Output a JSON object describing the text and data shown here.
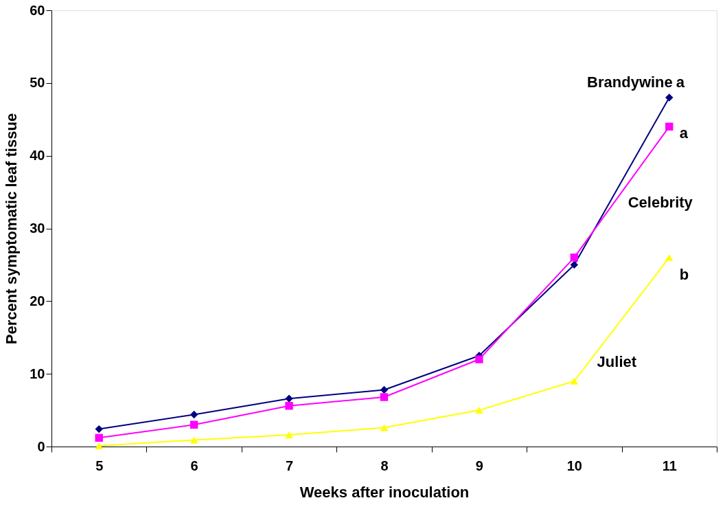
{
  "chart_data": {
    "type": "line",
    "xlabel": "Weeks after inoculation",
    "ylabel": "Percent symptomatic leaf tissue",
    "categories": [
      "5",
      "6",
      "7",
      "8",
      "9",
      "10",
      "11"
    ],
    "series": [
      {
        "name": "Brandywine",
        "color": "#000080",
        "marker": "diamond",
        "values": [
          2.4,
          4.4,
          6.6,
          7.8,
          12.5,
          25,
          48
        ]
      },
      {
        "name": "Celebrity",
        "color": "#ff00ff",
        "marker": "square",
        "values": [
          1.2,
          3.0,
          5.6,
          6.8,
          12,
          26,
          44
        ]
      },
      {
        "name": "Juliet",
        "color": "#ffff00",
        "marker": "triangle",
        "values": [
          0.1,
          0.9,
          1.6,
          2.6,
          5,
          9,
          26
        ]
      }
    ],
    "annotations": [
      {
        "text": "a",
        "x": "11",
        "y": 48
      },
      {
        "text": "a",
        "x": "11",
        "y": 44
      },
      {
        "text": "b",
        "x": "11",
        "y": 26
      }
    ],
    "ylim": [
      0,
      60
    ],
    "yticks": [
      0,
      10,
      20,
      30,
      40,
      50,
      60
    ],
    "grid": false
  }
}
